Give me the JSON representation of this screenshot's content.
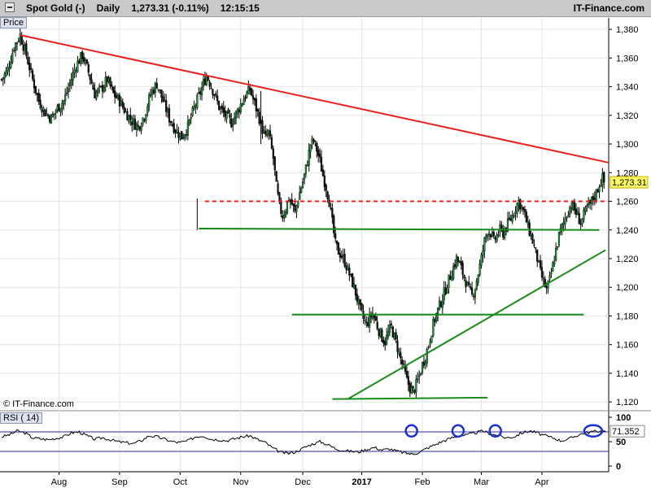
{
  "header": {
    "instrument": "Spot Gold (-)",
    "period": "Daily",
    "price_change": "1,273.31 (-0.11%)",
    "time": "12:15:15",
    "brand": "IT-Finance.com"
  },
  "panels": {
    "price_label": "Price",
    "rsi_label": "RSI ( 14)",
    "watermark": "© IT-Finance.com"
  },
  "chart_data": [
    {
      "type": "line",
      "subtype": "candlestick",
      "title": "Spot Gold (-) Daily",
      "ylim": [
        1115,
        1388
      ],
      "y_ticks": [
        "1,120",
        "1,140",
        "1,160",
        "1,180",
        "1,200",
        "1,220",
        "1,240",
        "1,260",
        "1,280",
        "1,300",
        "1,320",
        "1,340",
        "1,360",
        "1,380"
      ],
      "x_ticks": [
        "Aug",
        "Sep",
        "Oct",
        "Nov",
        "Dec",
        "2017",
        "Feb",
        "Mar",
        "Apr"
      ],
      "last_price": "1,273.31",
      "close_path": [
        [
          1,
          1345
        ],
        [
          5,
          1352
        ],
        [
          9,
          1368
        ],
        [
          13,
          1376
        ],
        [
          17,
          1362
        ],
        [
          21,
          1345
        ],
        [
          25,
          1330
        ],
        [
          29,
          1322
        ],
        [
          33,
          1318
        ],
        [
          37,
          1325
        ],
        [
          41,
          1330
        ],
        [
          45,
          1342
        ],
        [
          49,
          1355
        ],
        [
          53,
          1362
        ],
        [
          57,
          1350
        ],
        [
          61,
          1335
        ],
        [
          65,
          1338
        ],
        [
          69,
          1345
        ],
        [
          73,
          1335
        ],
        [
          77,
          1330
        ],
        [
          81,
          1322
        ],
        [
          85,
          1316
        ],
        [
          89,
          1312
        ],
        [
          93,
          1320
        ],
        [
          97,
          1335
        ],
        [
          101,
          1342
        ],
        [
          105,
          1330
        ],
        [
          109,
          1318
        ],
        [
          113,
          1310
        ],
        [
          117,
          1305
        ],
        [
          121,
          1312
        ],
        [
          125,
          1325
        ],
        [
          129,
          1336
        ],
        [
          133,
          1348
        ],
        [
          137,
          1338
        ],
        [
          141,
          1326
        ],
        [
          145,
          1320
        ],
        [
          149,
          1315
        ],
        [
          153,
          1323
        ],
        [
          157,
          1332
        ],
        [
          161,
          1338
        ],
        [
          164,
          1328
        ],
        [
          167,
          1318
        ],
        [
          169,
          1310
        ],
        [
          171,
          1304
        ],
        [
          173,
          1308
        ],
        [
          176,
          1290
        ],
        [
          178,
          1270
        ],
        [
          180,
          1256
        ],
        [
          182,
          1250
        ],
        [
          184,
          1255
        ],
        [
          186,
          1262
        ],
        [
          188,
          1258
        ],
        [
          190,
          1252
        ],
        [
          192,
          1262
        ],
        [
          194,
          1270
        ],
        [
          196,
          1278
        ],
        [
          198,
          1288
        ],
        [
          200,
          1300
        ],
        [
          202,
          1302
        ],
        [
          204,
          1296
        ],
        [
          206,
          1288
        ],
        [
          208,
          1278
        ],
        [
          210,
          1270
        ],
        [
          212,
          1260
        ],
        [
          214,
          1245
        ],
        [
          216,
          1230
        ],
        [
          218,
          1225
        ],
        [
          220,
          1222
        ],
        [
          222,
          1218
        ],
        [
          224,
          1212
        ],
        [
          226,
          1206
        ],
        [
          228,
          1200
        ],
        [
          230,
          1192
        ],
        [
          232,
          1184
        ],
        [
          234,
          1178
        ],
        [
          236,
          1174
        ],
        [
          238,
          1178
        ],
        [
          240,
          1182
        ],
        [
          242,
          1176
        ],
        [
          244,
          1170
        ],
        [
          246,
          1165
        ],
        [
          248,
          1162
        ],
        [
          250,
          1168
        ],
        [
          252,
          1172
        ],
        [
          254,
          1165
        ],
        [
          256,
          1158
        ],
        [
          258,
          1150
        ],
        [
          260,
          1143
        ],
        [
          262,
          1135
        ],
        [
          264,
          1130
        ],
        [
          266,
          1127
        ],
        [
          268,
          1132
        ],
        [
          270,
          1138
        ],
        [
          272,
          1146
        ],
        [
          274,
          1152
        ],
        [
          276,
          1160
        ],
        [
          278,
          1170
        ],
        [
          280,
          1178
        ],
        [
          282,
          1184
        ],
        [
          284,
          1190
        ],
        [
          286,
          1196
        ],
        [
          288,
          1202
        ],
        [
          290,
          1208
        ],
        [
          292,
          1214
        ],
        [
          294,
          1220
        ],
        [
          296,
          1216
        ],
        [
          298,
          1210
        ],
        [
          300,
          1204
        ],
        [
          302,
          1198
        ],
        [
          304,
          1194
        ],
        [
          306,
          1200
        ],
        [
          308,
          1210
        ],
        [
          310,
          1220
        ],
        [
          312,
          1232
        ],
        [
          314,
          1240
        ],
        [
          316,
          1238
        ],
        [
          318,
          1232
        ],
        [
          320,
          1236
        ],
        [
          322,
          1240
        ],
        [
          324,
          1238
        ],
        [
          326,
          1242
        ],
        [
          328,
          1246
        ],
        [
          330,
          1250
        ],
        [
          332,
          1256
        ],
        [
          334,
          1260
        ],
        [
          336,
          1256
        ],
        [
          338,
          1250
        ],
        [
          340,
          1242
        ],
        [
          342,
          1236
        ],
        [
          344,
          1228
        ],
        [
          346,
          1220
        ],
        [
          348,
          1210
        ],
        [
          350,
          1204
        ],
        [
          352,
          1198
        ],
        [
          354,
          1205
        ],
        [
          356,
          1215
        ],
        [
          358,
          1226
        ],
        [
          360,
          1236
        ],
        [
          362,
          1242
        ],
        [
          364,
          1248
        ],
        [
          366,
          1254
        ],
        [
          368,
          1258
        ],
        [
          370,
          1254
        ],
        [
          372,
          1250
        ],
        [
          374,
          1245
        ],
        [
          376,
          1250
        ],
        [
          378,
          1255
        ],
        [
          380,
          1258
        ],
        [
          382,
          1262
        ],
        [
          384,
          1266
        ],
        [
          386,
          1272
        ],
        [
          388,
          1276
        ],
        [
          389,
          1273.31
        ]
      ],
      "series": [
        {
          "name": "",
          "type": "trendline",
          "style": "solid",
          "color": "#e8201e",
          "points": [
            [
              13,
              1376
            ],
            [
              392,
              1287
            ]
          ]
        },
        {
          "name": "",
          "type": "horizontal",
          "style": "dashed",
          "color": "#e8201e",
          "points": [
            [
              132,
              1260
            ],
            [
              392,
              1260
            ]
          ]
        },
        {
          "name": "",
          "type": "horizontal",
          "style": "solid",
          "color": "#1a8a1a",
          "points": [
            [
              128,
              1241
            ],
            [
              386,
              1240
            ]
          ]
        },
        {
          "name": "",
          "type": "horizontal",
          "style": "solid",
          "color": "#1a8a1a",
          "points": [
            [
              188,
              1181
            ],
            [
              376,
              1181
            ]
          ]
        },
        {
          "name": "",
          "type": "horizontal",
          "style": "solid",
          "color": "#1a8a1a",
          "points": [
            [
              214,
              1122
            ],
            [
              314,
              1123
            ]
          ]
        },
        {
          "name": "",
          "type": "trendline",
          "style": "solid",
          "color": "#1a8a1a",
          "points": [
            [
              224,
              1122
            ],
            [
              390,
              1226
            ]
          ]
        }
      ]
    },
    {
      "type": "line",
      "title": "RSI ( 14)",
      "ylim": [
        0,
        100
      ],
      "y_ticks": [
        "100",
        "50",
        "0"
      ],
      "levels": [
        70,
        30
      ],
      "last_value": "71.352",
      "highlight_x": [
        265,
        295,
        319,
        382
      ],
      "values": [
        [
          1,
          60
        ],
        [
          6,
          64
        ],
        [
          11,
          72
        ],
        [
          16,
          68
        ],
        [
          21,
          58
        ],
        [
          26,
          56
        ],
        [
          31,
          54
        ],
        [
          36,
          57
        ],
        [
          41,
          60
        ],
        [
          46,
          68
        ],
        [
          51,
          70
        ],
        [
          56,
          62
        ],
        [
          61,
          55
        ],
        [
          66,
          58
        ],
        [
          71,
          54
        ],
        [
          76,
          50
        ],
        [
          81,
          48
        ],
        [
          86,
          46
        ],
        [
          91,
          52
        ],
        [
          96,
          62
        ],
        [
          101,
          60
        ],
        [
          106,
          55
        ],
        [
          111,
          50
        ],
        [
          116,
          48
        ],
        [
          121,
          52
        ],
        [
          126,
          60
        ],
        [
          131,
          62
        ],
        [
          136,
          55
        ],
        [
          141,
          54
        ],
        [
          146,
          52
        ],
        [
          151,
          56
        ],
        [
          156,
          60
        ],
        [
          161,
          62
        ],
        [
          166,
          54
        ],
        [
          171,
          48
        ],
        [
          176,
          36
        ],
        [
          181,
          28
        ],
        [
          186,
          26
        ],
        [
          191,
          30
        ],
        [
          196,
          38
        ],
        [
          201,
          45
        ],
        [
          206,
          50
        ],
        [
          211,
          44
        ],
        [
          216,
          36
        ],
        [
          221,
          32
        ],
        [
          226,
          30
        ],
        [
          231,
          29
        ],
        [
          236,
          34
        ],
        [
          241,
          38
        ],
        [
          246,
          33
        ],
        [
          251,
          35
        ],
        [
          256,
          30
        ],
        [
          261,
          27
        ],
        [
          266,
          24
        ],
        [
          271,
          30
        ],
        [
          276,
          38
        ],
        [
          281,
          45
        ],
        [
          286,
          52
        ],
        [
          291,
          58
        ],
        [
          296,
          62
        ],
        [
          301,
          64
        ],
        [
          306,
          68
        ],
        [
          311,
          72
        ],
        [
          316,
          66
        ],
        [
          321,
          62
        ],
        [
          326,
          58
        ],
        [
          331,
          60
        ],
        [
          336,
          68
        ],
        [
          341,
          72
        ],
        [
          346,
          68
        ],
        [
          351,
          62
        ],
        [
          356,
          58
        ],
        [
          361,
          52
        ],
        [
          366,
          55
        ],
        [
          371,
          62
        ],
        [
          376,
          68
        ],
        [
          381,
          70
        ],
        [
          386,
          72
        ],
        [
          390,
          71.35
        ]
      ]
    }
  ]
}
